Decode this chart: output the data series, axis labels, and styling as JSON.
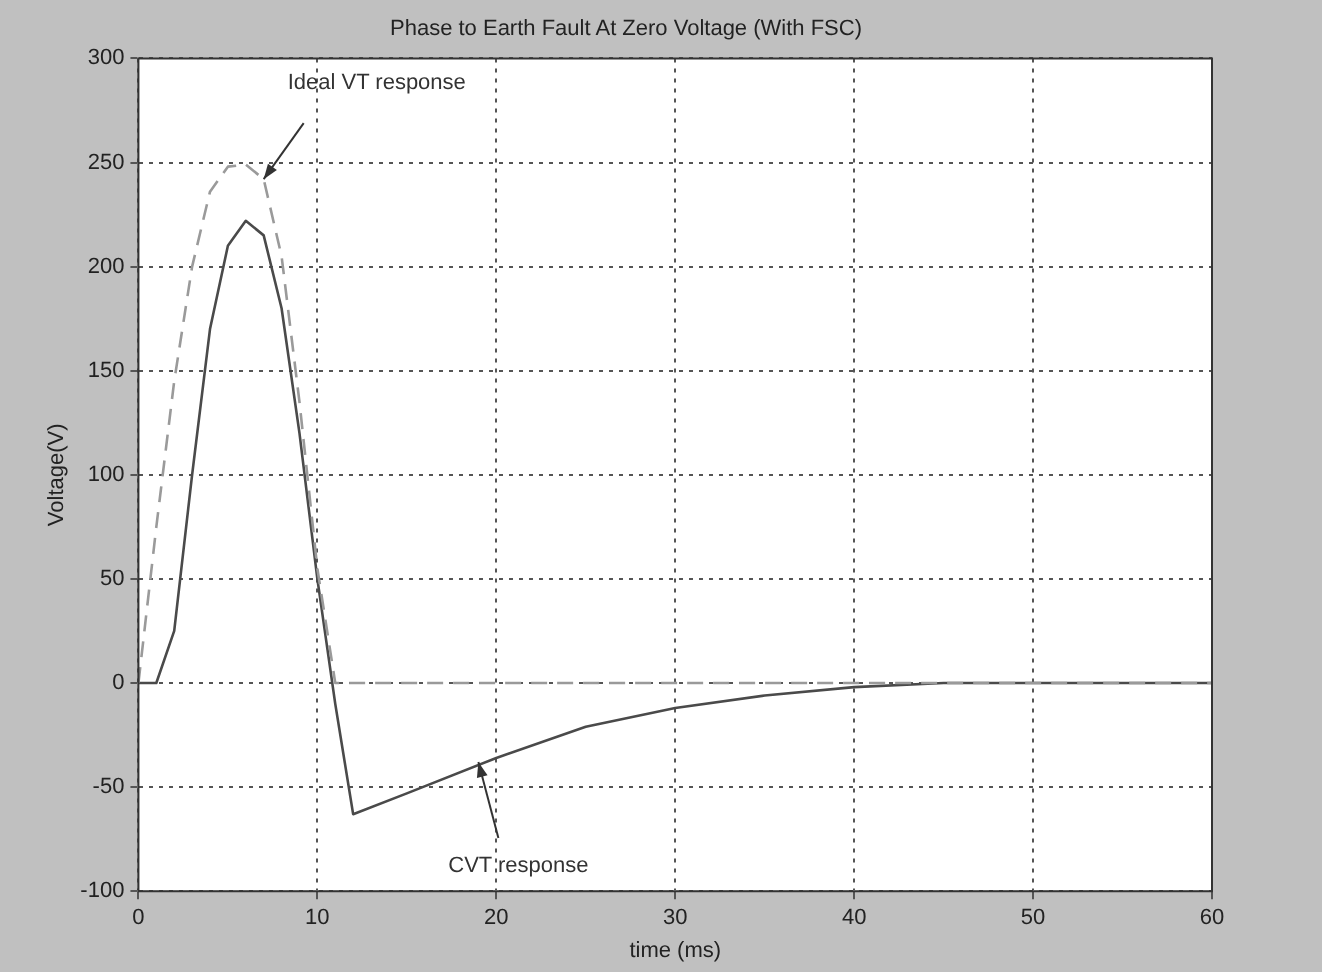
{
  "chart_data": {
    "type": "line",
    "title": "Phase to Earth Fault At Zero Voltage (With FSC)",
    "xlabel": "time (ms)",
    "ylabel": "Voltage(V)",
    "xlim": [
      0,
      60
    ],
    "xticks": [
      0,
      10,
      20,
      30,
      40,
      50,
      60
    ],
    "ylim": [
      -100,
      300
    ],
    "yticks": [
      -100,
      -50,
      0,
      50,
      100,
      150,
      200,
      250,
      300
    ],
    "grid": true,
    "legend": false,
    "marker": "none",
    "series": [
      {
        "color": "#9a9a9a",
        "line_style": "dashed",
        "x": [
          0,
          1,
          2,
          3,
          4,
          5,
          6,
          7,
          8,
          9,
          10,
          11,
          12,
          20,
          30,
          40,
          50,
          60
        ],
        "values": [
          0,
          75,
          145,
          200,
          236,
          248,
          249,
          242,
          205,
          135,
          55,
          0,
          0,
          0,
          0,
          0,
          0,
          0
        ]
      },
      {
        "color": "#4a4a4a",
        "line_style": "solid",
        "x": [
          0,
          1,
          2,
          3,
          4,
          5,
          6,
          7,
          8,
          9,
          10,
          11,
          12,
          15,
          20,
          25,
          30,
          35,
          40,
          45,
          50,
          60
        ],
        "values": [
          0,
          0,
          25,
          100,
          170,
          210,
          222,
          215,
          180,
          120,
          50,
          -10,
          -63,
          -53,
          -36,
          -21,
          -12,
          -6,
          -2,
          0,
          0,
          0
        ]
      }
    ],
    "annotations": [
      {
        "text": "Ideal VT response",
        "x": 7,
        "y": 242
      },
      {
        "text": "CVT response",
        "x": 19,
        "y": -38
      }
    ]
  }
}
